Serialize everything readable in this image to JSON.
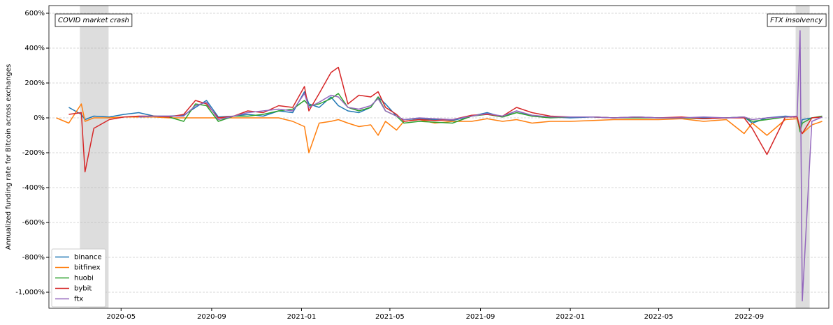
{
  "chart_data": {
    "type": "line",
    "y_label": "Annualized funding rate for Bitcoin across exchanges",
    "x": [
      "2020-02-03",
      "2020-02-20",
      "2020-03-08",
      "2020-03-13",
      "2020-03-25",
      "2020-04-15",
      "2020-05-05",
      "2020-05-25",
      "2020-06-15",
      "2020-07-05",
      "2020-07-25",
      "2020-08-10",
      "2020-08-25",
      "2020-09-10",
      "2020-10-01",
      "2020-10-20",
      "2020-11-10",
      "2020-12-01",
      "2020-12-20",
      "2021-01-05",
      "2021-01-11",
      "2021-01-25",
      "2021-02-10",
      "2021-02-20",
      "2021-03-05",
      "2021-03-20",
      "2021-04-05",
      "2021-04-15",
      "2021-04-25",
      "2021-05-10",
      "2021-05-20",
      "2021-06-10",
      "2021-07-01",
      "2021-07-25",
      "2021-08-20",
      "2021-09-10",
      "2021-10-01",
      "2021-10-20",
      "2021-11-10",
      "2021-12-05",
      "2022-01-01",
      "2022-02-01",
      "2022-03-01",
      "2022-04-01",
      "2022-05-01",
      "2022-06-01",
      "2022-07-01",
      "2022-08-01",
      "2022-08-25",
      "2022-09-05",
      "2022-09-25",
      "2022-10-20",
      "2022-11-05",
      "2022-11-09",
      "2022-11-12",
      "2022-11-25",
      "2022-12-09"
    ],
    "series": [
      {
        "name": "binance",
        "color": "#1f77b4",
        "values": [
          null,
          60,
          20,
          -10,
          10,
          5,
          20,
          30,
          10,
          10,
          15,
          60,
          100,
          5,
          10,
          20,
          10,
          40,
          30,
          150,
          80,
          60,
          120,
          70,
          40,
          30,
          60,
          120,
          80,
          10,
          -10,
          -5,
          -10,
          -15,
          10,
          30,
          5,
          40,
          10,
          5,
          0,
          5,
          0,
          5,
          0,
          0,
          0,
          0,
          5,
          -30,
          0,
          10,
          5,
          -70,
          -10,
          0,
          5
        ]
      },
      {
        "name": "bitfinex",
        "color": "#ff7f0e",
        "values": [
          0,
          -30,
          80,
          -20,
          0,
          0,
          5,
          5,
          5,
          0,
          0,
          0,
          0,
          0,
          0,
          0,
          0,
          0,
          -20,
          -50,
          -200,
          -30,
          -20,
          -10,
          -30,
          -50,
          -40,
          -100,
          -20,
          -70,
          -20,
          -10,
          -30,
          -20,
          -20,
          -5,
          -20,
          -10,
          -30,
          -20,
          -20,
          -15,
          -10,
          -10,
          -10,
          -5,
          -20,
          -10,
          -90,
          -30,
          -100,
          -10,
          -5,
          -70,
          -90,
          -40,
          -20
        ]
      },
      {
        "name": "huobi",
        "color": "#2ca02c",
        "values": [
          null,
          null,
          null,
          null,
          null,
          null,
          null,
          5,
          10,
          5,
          -20,
          80,
          70,
          -20,
          10,
          10,
          20,
          40,
          50,
          100,
          70,
          80,
          110,
          140,
          60,
          40,
          60,
          120,
          40,
          10,
          -30,
          -20,
          -25,
          -30,
          10,
          20,
          5,
          30,
          10,
          0,
          5,
          5,
          0,
          0,
          0,
          0,
          -5,
          0,
          5,
          -20,
          -10,
          5,
          5,
          -80,
          -30,
          0,
          10
        ]
      },
      {
        "name": "bybit",
        "color": "#d62728",
        "values": [
          null,
          20,
          30,
          -310,
          -60,
          -10,
          5,
          10,
          10,
          5,
          20,
          100,
          80,
          0,
          10,
          40,
          30,
          70,
          60,
          180,
          40,
          140,
          260,
          290,
          80,
          130,
          120,
          150,
          60,
          20,
          -20,
          -10,
          -15,
          -10,
          15,
          20,
          10,
          60,
          30,
          10,
          5,
          5,
          0,
          5,
          0,
          5,
          -5,
          0,
          0,
          -60,
          -210,
          5,
          5,
          -60,
          -90,
          0,
          5
        ]
      },
      {
        "name": "ftx",
        "color": "#9467bd",
        "values": [
          null,
          null,
          null,
          null,
          null,
          null,
          null,
          5,
          10,
          10,
          10,
          70,
          90,
          -10,
          10,
          30,
          40,
          50,
          40,
          140,
          60,
          90,
          130,
          120,
          60,
          50,
          70,
          110,
          40,
          10,
          -10,
          0,
          -5,
          -10,
          10,
          25,
          10,
          40,
          15,
          5,
          5,
          5,
          0,
          5,
          0,
          0,
          5,
          0,
          5,
          -10,
          0,
          5,
          10,
          500,
          -1050,
          -20,
          5
        ]
      }
    ],
    "xlim": [
      "2020-01-24",
      "2022-12-18"
    ],
    "xticks": [
      {
        "value": "2020-05-01",
        "label": "2020-05"
      },
      {
        "value": "2020-09-01",
        "label": "2020-09"
      },
      {
        "value": "2021-01-01",
        "label": "2021-01"
      },
      {
        "value": "2021-05-01",
        "label": "2021-05"
      },
      {
        "value": "2021-09-01",
        "label": "2021-09"
      },
      {
        "value": "2022-01-01",
        "label": "2022-01"
      },
      {
        "value": "2022-05-01",
        "label": "2022-05"
      },
      {
        "value": "2022-09-01",
        "label": "2022-09"
      }
    ],
    "ylim": [
      -1092,
      644
    ],
    "yticks": [
      {
        "value": -1000,
        "label": "-1,000%"
      },
      {
        "value": -800,
        "label": "-800%"
      },
      {
        "value": -600,
        "label": "-600%"
      },
      {
        "value": -400,
        "label": "-400%"
      },
      {
        "value": -200,
        "label": "-200%"
      },
      {
        "value": 0,
        "label": "0%"
      },
      {
        "value": 200,
        "label": "200%"
      },
      {
        "value": 400,
        "label": "400%"
      },
      {
        "value": 600,
        "label": "600%"
      }
    ],
    "grid": true,
    "legend": "lower left",
    "spans": [
      {
        "label": "COVID market crash",
        "start": "2020-03-06",
        "end": "2020-04-14",
        "color": "#dddddd",
        "label_side": "left"
      },
      {
        "label": "FTX insolvency",
        "start": "2022-11-03",
        "end": "2022-11-22",
        "color": "#dddddd",
        "label_side": "right"
      }
    ]
  }
}
